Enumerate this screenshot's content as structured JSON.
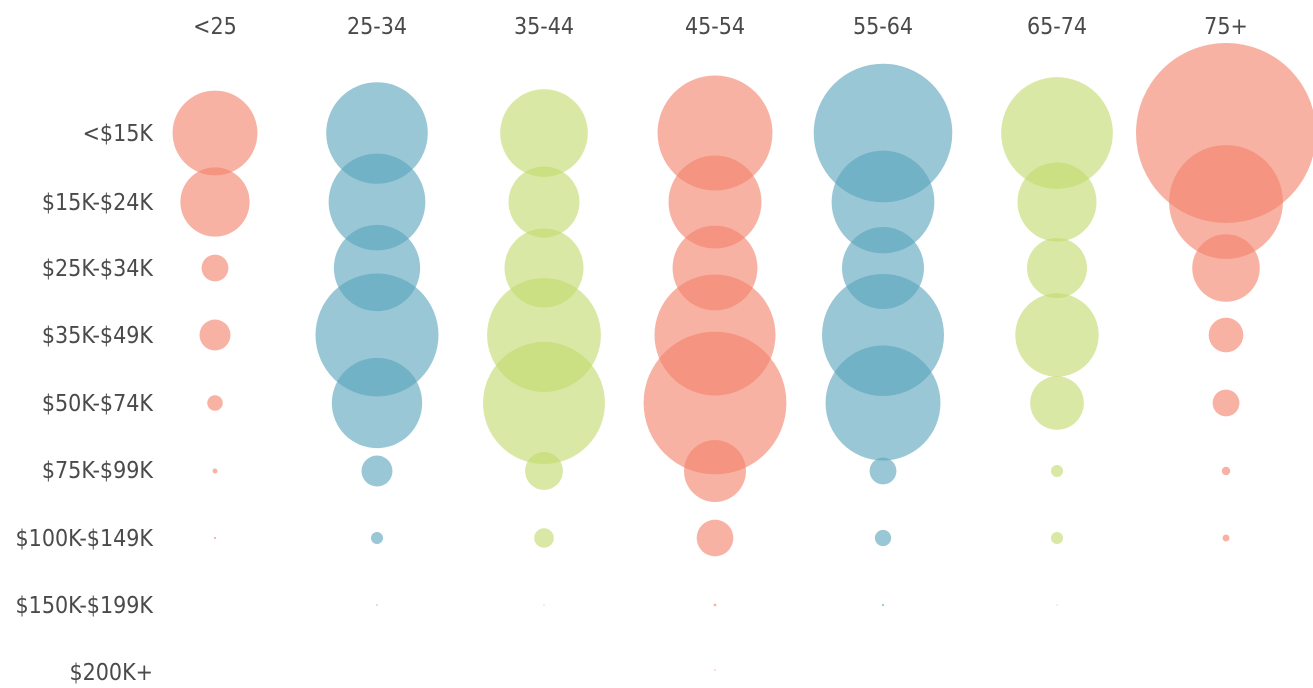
{
  "chart_data": {
    "type": "bubble-matrix",
    "title": "",
    "columns": [
      "<25",
      "25-34",
      "35-44",
      "45-54",
      "55-64",
      "65-74",
      "75+"
    ],
    "rows": [
      "<$15K",
      "$15K-$24K",
      "$25K-$34K",
      "$35K-$49K",
      "$50K-$74K",
      "$75K-$99K",
      "$100K-$149K",
      "$150K-$199K",
      "$200K+"
    ],
    "size_encoding": "bubble area proportional to value (relative units)",
    "values": [
      [
        0.03,
        0.043,
        0.032,
        0.055,
        0.08,
        0.052,
        0.135
      ],
      [
        0.02,
        0.039,
        0.021,
        0.036,
        0.044,
        0.026,
        0.054
      ],
      [
        0.003,
        0.031,
        0.026,
        0.03,
        0.028,
        0.015,
        0.019
      ],
      [
        0.004,
        0.063,
        0.054,
        0.061,
        0.062,
        0.029,
        0.005
      ],
      [
        0.001,
        0.034,
        0.062,
        0.085,
        0.055,
        0.012,
        0.003
      ],
      [
        0.0001,
        0.004,
        0.006,
        0.016,
        0.003,
        0.0006,
        0.0003
      ],
      [
        2e-05,
        0.0006,
        0.0016,
        0.0056,
        0.0011,
        0.0006,
        0.0002
      ],
      [
        0,
        1e-05,
        1e-05,
        3e-05,
        2e-05,
        1e-05,
        0
      ],
      [
        0,
        0,
        0,
        1e-05,
        0,
        0,
        0
      ]
    ],
    "column_colors": [
      "#f4826c",
      "#5aa5bd",
      "#c2da6d",
      "#f4826c",
      "#5aa5bd",
      "#c2da6d",
      "#f4826c"
    ],
    "bubble_opacity": 0.62,
    "label_color": "#4a4a4a",
    "legend": "none",
    "grid": false
  }
}
